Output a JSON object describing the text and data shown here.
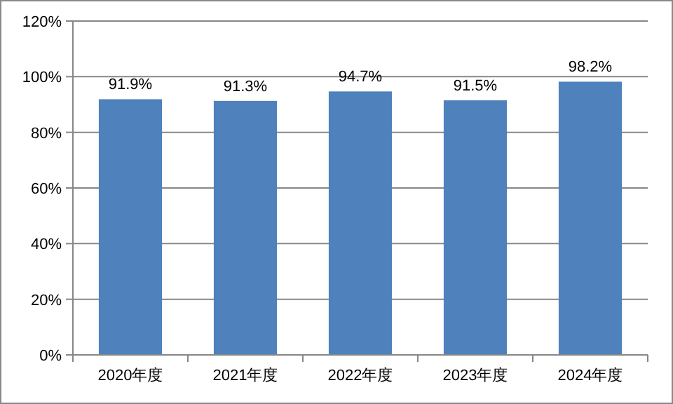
{
  "chart_data": {
    "type": "bar",
    "categories": [
      "2020年度",
      "2021年度",
      "2022年度",
      "2023年度",
      "2024年度"
    ],
    "values": [
      91.9,
      91.3,
      94.7,
      91.5,
      98.2
    ],
    "value_labels": [
      "91.9%",
      "91.3%",
      "94.7%",
      "91.5%",
      "98.2%"
    ],
    "color": "#4f81bd",
    "ylim": [
      0,
      120
    ],
    "yticks": [
      {
        "value": 0,
        "label": "0%"
      },
      {
        "value": 20,
        "label": "20%"
      },
      {
        "value": 40,
        "label": "40%"
      },
      {
        "value": 60,
        "label": "60%"
      },
      {
        "value": 80,
        "label": "80%"
      },
      {
        "value": 100,
        "label": "100%"
      },
      {
        "value": 120,
        "label": "120%"
      }
    ],
    "grid": "y"
  }
}
